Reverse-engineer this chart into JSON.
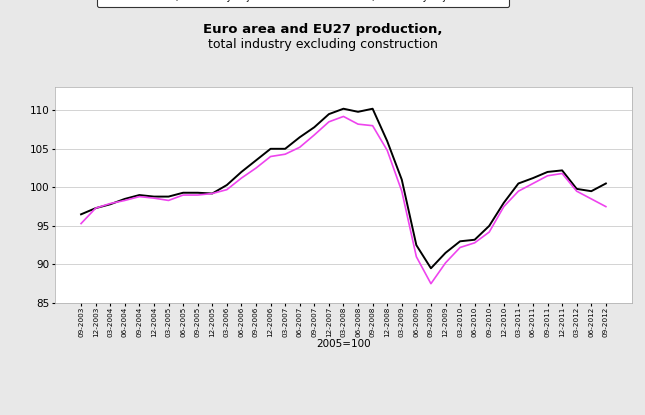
{
  "title_line1": "Euro area and EU27 production,",
  "title_line2": "total industry excluding construction",
  "xlabel": "2005=100",
  "ylim": [
    85,
    113
  ],
  "yticks": [
    85,
    90,
    95,
    100,
    105,
    110
  ],
  "euro_color": "#EE44EE",
  "eu27_color": "#000000",
  "background_color": "#e8e8e8",
  "plot_bg_color": "#ffffff",
  "tick_labels": [
    "09-2003",
    "12-2003",
    "03-2004",
    "06-2004",
    "09-2004",
    "12-2004",
    "03-2005",
    "06-2005",
    "09-2005",
    "12-2005",
    "03-2006",
    "06-2006",
    "09-2006",
    "12-2006",
    "03-2007",
    "06-2007",
    "09-2007",
    "12-2007",
    "03-2008",
    "06-2008",
    "09-2008",
    "12-2008",
    "03-2009",
    "06-2009",
    "09-2009",
    "12-2009",
    "03-2010",
    "06-2010",
    "09-2010",
    "12-2010",
    "03-2011",
    "06-2011",
    "09-2011",
    "12-2011",
    "03-2012",
    "06-2012",
    "09-2012"
  ],
  "euro_data": [
    95.3,
    97.3,
    97.9,
    98.3,
    98.8,
    98.6,
    98.3,
    99.0,
    99.0,
    99.2,
    99.7,
    101.2,
    102.5,
    104.0,
    104.3,
    105.2,
    106.8,
    108.5,
    109.2,
    108.2,
    108.0,
    104.8,
    99.5,
    91.0,
    87.5,
    90.2,
    92.2,
    92.8,
    94.2,
    97.5,
    99.5,
    100.5,
    101.5,
    101.8,
    99.5,
    98.5,
    97.5
  ],
  "eu27_data": [
    96.5,
    97.3,
    97.8,
    98.5,
    99.0,
    98.8,
    98.8,
    99.3,
    99.3,
    99.2,
    100.3,
    102.0,
    103.5,
    105.0,
    105.0,
    106.5,
    107.8,
    109.5,
    110.2,
    109.8,
    110.2,
    106.0,
    101.0,
    92.5,
    89.5,
    91.5,
    93.0,
    93.2,
    95.0,
    98.0,
    100.5,
    101.2,
    102.0,
    102.2,
    99.8,
    99.5,
    100.5
  ]
}
